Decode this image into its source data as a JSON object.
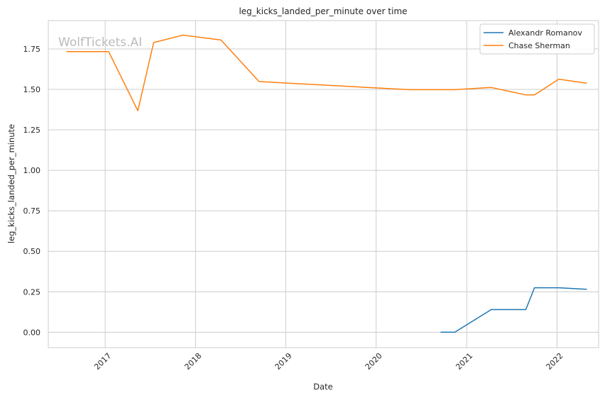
{
  "chart_data": {
    "type": "line",
    "title": "leg_kicks_landed_per_minute over time",
    "xlabel": "Date",
    "ylabel": "leg_kicks_landed_per_minute",
    "watermark": "WolfTickets.AI",
    "x_ticks": [
      "2017",
      "2018",
      "2019",
      "2020",
      "2021",
      "2022"
    ],
    "y_ticks": [
      "0.00",
      "0.25",
      "0.50",
      "0.75",
      "1.00",
      "1.25",
      "1.50",
      "1.75"
    ],
    "xlim": [
      "2016-05-16",
      "2022-06-18"
    ],
    "ylim": [
      -0.095,
      1.925
    ],
    "grid": true,
    "legend_position": "top-right",
    "series": [
      {
        "name": "Alexandr Romanov",
        "color": "#1f77b4",
        "points": [
          [
            "2020-09-19",
            0.0
          ],
          [
            "2020-11-14",
            0.0
          ],
          [
            "2021-04-10",
            0.14
          ],
          [
            "2021-08-28",
            0.14
          ],
          [
            "2021-10-02",
            0.275
          ],
          [
            "2022-01-08",
            0.275
          ],
          [
            "2022-04-30",
            0.265
          ]
        ]
      },
      {
        "name": "Chase Sherman",
        "color": "#ff7f0e",
        "points": [
          [
            "2016-07-30",
            1.733
          ],
          [
            "2017-01-15",
            1.733
          ],
          [
            "2017-05-13",
            1.368
          ],
          [
            "2017-07-16",
            1.789
          ],
          [
            "2017-11-11",
            1.835
          ],
          [
            "2018-04-14",
            1.805
          ],
          [
            "2018-09-15",
            1.548
          ],
          [
            "2020-05-13",
            1.498
          ],
          [
            "2020-11-14",
            1.498
          ],
          [
            "2021-04-10",
            1.512
          ],
          [
            "2021-08-28",
            1.466
          ],
          [
            "2021-10-02",
            1.466
          ],
          [
            "2022-01-08",
            1.563
          ],
          [
            "2022-04-30",
            1.538
          ]
        ]
      }
    ]
  }
}
